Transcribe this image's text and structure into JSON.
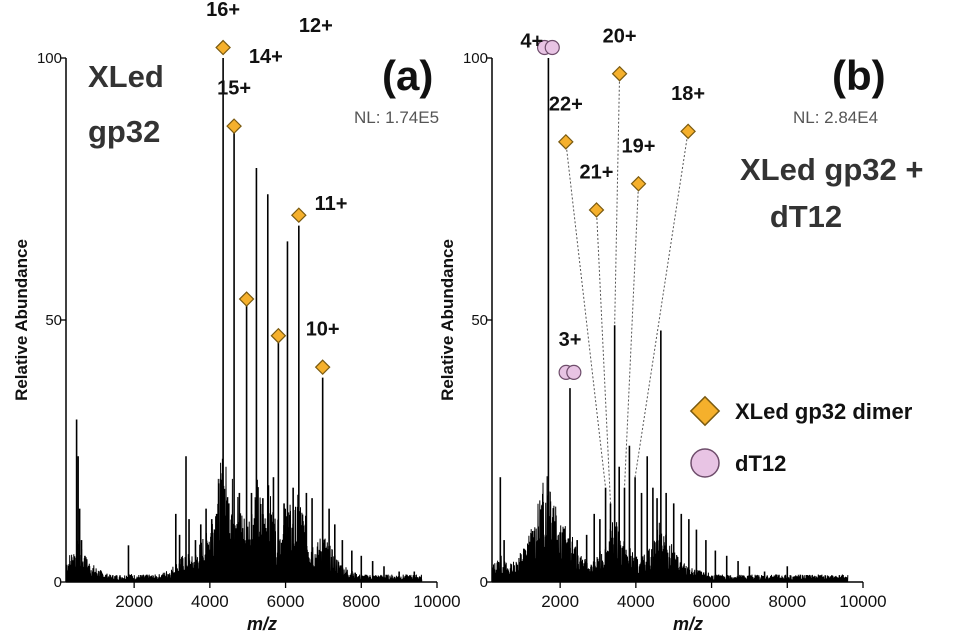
{
  "chart_data": [
    {
      "type": "line",
      "panel": "(a)",
      "sample": [
        "XLed",
        "gp32"
      ],
      "nl": "NL: 1.74E5",
      "xlabel": "m/z",
      "ylabel": "Relative Abundance",
      "xlim": [
        200,
        10000
      ],
      "ylim": [
        0,
        100
      ],
      "xticks": [
        2000,
        4000,
        6000,
        8000,
        10000
      ],
      "yticks": [
        0,
        50,
        100
      ],
      "peaks": [
        {
          "x": 480,
          "y": 31
        },
        {
          "x": 520,
          "y": 24
        },
        {
          "x": 560,
          "y": 14
        },
        {
          "x": 610,
          "y": 8
        },
        {
          "x": 700,
          "y": 5
        },
        {
          "x": 1850,
          "y": 7
        },
        {
          "x": 3100,
          "y": 13
        },
        {
          "x": 3200,
          "y": 9
        },
        {
          "x": 3370,
          "y": 24
        },
        {
          "x": 3450,
          "y": 12
        },
        {
          "x": 3620,
          "y": 8
        },
        {
          "x": 3760,
          "y": 11
        },
        {
          "x": 3900,
          "y": 14
        },
        {
          "x": 4050,
          "y": 12
        },
        {
          "x": 4180,
          "y": 13
        },
        {
          "x": 4280,
          "y": 11
        },
        {
          "x": 4350,
          "y": 100
        },
        {
          "x": 4500,
          "y": 15
        },
        {
          "x": 4640,
          "y": 86
        },
        {
          "x": 4780,
          "y": 17
        },
        {
          "x": 4970,
          "y": 53
        },
        {
          "x": 5100,
          "y": 17
        },
        {
          "x": 5230,
          "y": 79
        },
        {
          "x": 5400,
          "y": 16
        },
        {
          "x": 5530,
          "y": 74
        },
        {
          "x": 5680,
          "y": 20
        },
        {
          "x": 5810,
          "y": 47
        },
        {
          "x": 5960,
          "y": 15
        },
        {
          "x": 6050,
          "y": 65
        },
        {
          "x": 6200,
          "y": 18
        },
        {
          "x": 6350,
          "y": 68
        },
        {
          "x": 6550,
          "y": 17
        },
        {
          "x": 6700,
          "y": 16
        },
        {
          "x": 6980,
          "y": 39
        },
        {
          "x": 7150,
          "y": 14
        },
        {
          "x": 7300,
          "y": 11
        },
        {
          "x": 7500,
          "y": 8
        },
        {
          "x": 7750,
          "y": 6
        },
        {
          "x": 8000,
          "y": 5
        },
        {
          "x": 8300,
          "y": 4
        },
        {
          "x": 8600,
          "y": 3
        },
        {
          "x": 9000,
          "y": 2
        },
        {
          "x": 9400,
          "y": 2
        }
      ],
      "annotations": [
        {
          "label": "16+",
          "peak_x": 4350,
          "marker": "diamond",
          "mx": 4350,
          "my": 102,
          "lx": 4350,
          "ly": 108
        },
        {
          "label": "15+",
          "peak_x": 4640,
          "marker": "diamond",
          "mx": 4640,
          "my": 87,
          "lx": 4640,
          "ly": 93
        },
        {
          "label": "14+",
          "peak_x": 4970,
          "marker": "diamond",
          "mx": 4970,
          "my": 54,
          "lx": 5480,
          "ly": 99
        },
        {
          "label": "12+",
          "peak_x": 5810,
          "marker": "diamond",
          "mx": 5810,
          "my": 47,
          "lx": 6800,
          "ly": 105
        },
        {
          "label": "11+",
          "peak_x": 6350,
          "marker": "diamond",
          "mx": 6350,
          "my": 70,
          "lx": 7200,
          "ly": 71
        },
        {
          "label": "10+",
          "peak_x": 6980,
          "marker": "diamond",
          "mx": 6980,
          "my": 41,
          "lx": 6980,
          "ly": 47
        }
      ]
    },
    {
      "type": "line",
      "panel": "(b)",
      "sample": [
        "XLed gp32 +",
        "dT12"
      ],
      "nl": "NL: 2.84E4",
      "xlabel": "m/z",
      "ylabel": "Relative Abundance",
      "xlim": [
        200,
        10000
      ],
      "ylim": [
        0,
        100
      ],
      "xticks": [
        2000,
        4000,
        6000,
        8000,
        10000
      ],
      "yticks": [
        0,
        50,
        100
      ],
      "peaks": [
        {
          "x": 420,
          "y": 20
        },
        {
          "x": 520,
          "y": 8
        },
        {
          "x": 1000,
          "y": 4
        },
        {
          "x": 1690,
          "y": 100
        },
        {
          "x": 1800,
          "y": 6
        },
        {
          "x": 2120,
          "y": 9
        },
        {
          "x": 2260,
          "y": 37
        },
        {
          "x": 2450,
          "y": 8
        },
        {
          "x": 2700,
          "y": 9
        },
        {
          "x": 2900,
          "y": 13
        },
        {
          "x": 3050,
          "y": 12
        },
        {
          "x": 3200,
          "y": 18
        },
        {
          "x": 3330,
          "y": 15
        },
        {
          "x": 3440,
          "y": 49
        },
        {
          "x": 3560,
          "y": 22
        },
        {
          "x": 3700,
          "y": 18
        },
        {
          "x": 3830,
          "y": 26
        },
        {
          "x": 3980,
          "y": 20
        },
        {
          "x": 4150,
          "y": 17
        },
        {
          "x": 4300,
          "y": 24
        },
        {
          "x": 4450,
          "y": 18
        },
        {
          "x": 4560,
          "y": 16
        },
        {
          "x": 4660,
          "y": 48
        },
        {
          "x": 4800,
          "y": 17
        },
        {
          "x": 5000,
          "y": 15
        },
        {
          "x": 5200,
          "y": 13
        },
        {
          "x": 5400,
          "y": 12
        },
        {
          "x": 5600,
          "y": 10
        },
        {
          "x": 5850,
          "y": 8
        },
        {
          "x": 6100,
          "y": 6
        },
        {
          "x": 6400,
          "y": 5
        },
        {
          "x": 6700,
          "y": 4
        },
        {
          "x": 7000,
          "y": 3
        },
        {
          "x": 7400,
          "y": 2
        },
        {
          "x": 8000,
          "y": 3
        }
      ],
      "annotations": [
        {
          "label": "4+",
          "peak_x": 1690,
          "marker": "circle",
          "mx": 1690,
          "my": 102,
          "lx": 1250,
          "ly": 102
        },
        {
          "label": "22+",
          "peak_x": 3200,
          "marker": "diamond",
          "mx": 2150,
          "my": 84,
          "lx": 2150,
          "ly": 90
        },
        {
          "label": "21+",
          "peak_x": 3330,
          "marker": "diamond",
          "mx": 2960,
          "my": 71,
          "lx": 2960,
          "ly": 77
        },
        {
          "label": "20+",
          "peak_x": 3440,
          "marker": "diamond",
          "mx": 3570,
          "my": 97,
          "lx": 3570,
          "ly": 103
        },
        {
          "label": "19+",
          "peak_x": 3700,
          "marker": "diamond",
          "mx": 4070,
          "my": 76,
          "lx": 4070,
          "ly": 82
        },
        {
          "label": "18+",
          "peak_x": 3980,
          "marker": "diamond",
          "mx": 5380,
          "my": 86,
          "lx": 5380,
          "ly": 92
        },
        {
          "label": "3+",
          "peak_x": 2260,
          "marker": "circle",
          "mx": 2260,
          "my": 40,
          "lx": 2260,
          "ly": 45
        }
      ]
    }
  ],
  "legend": [
    {
      "marker": "diamond",
      "label": "XLed gp32 dimer"
    },
    {
      "marker": "circle",
      "label": "dT12"
    }
  ],
  "colors": {
    "diamond_fill": "#f5b02c",
    "diamond_stroke": "#7a5a10",
    "circle_fill": "#e8c4e4",
    "circle_stroke": "#6e4d6b",
    "trace": "#000000",
    "leader": "#555555"
  }
}
